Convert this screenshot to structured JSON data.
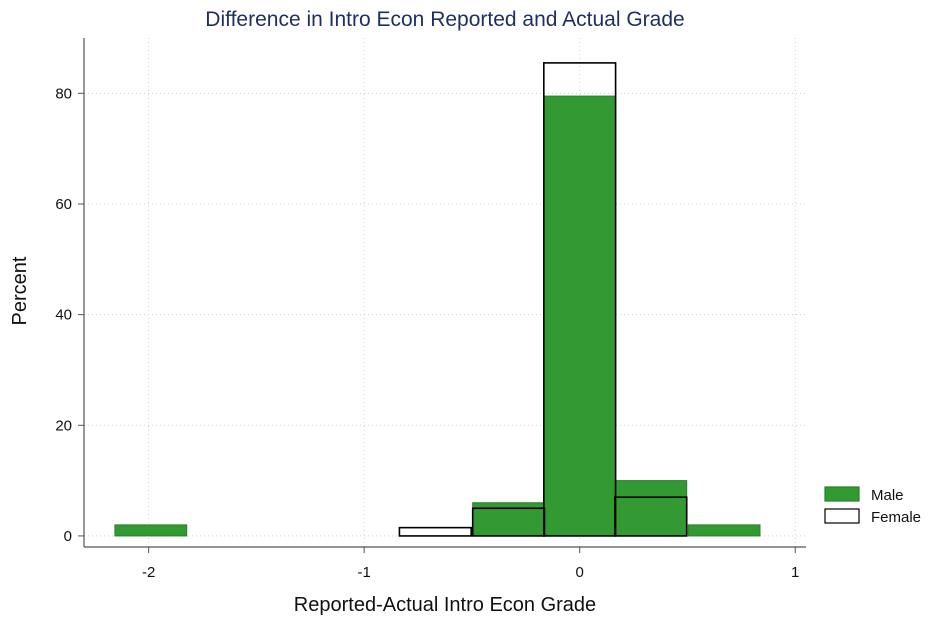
{
  "chart_data": {
    "type": "bar",
    "title": "Difference in Intro Econ Reported and Actual Grade",
    "xlabel": "Reported-Actual Intro Econ Grade",
    "ylabel": "Percent",
    "xlim": [
      -2.3,
      1.05
    ],
    "ylim": [
      -2,
      90
    ],
    "xticks": [
      -2,
      -1,
      0,
      1
    ],
    "xtick_labels": [
      "-2",
      "-1",
      "0",
      "1"
    ],
    "yticks": [
      0,
      20,
      40,
      60,
      80
    ],
    "ytick_labels": [
      "0",
      "20",
      "40",
      "60",
      "80"
    ],
    "grid": true,
    "bin_width": 0.333,
    "legend_position": "right",
    "series": [
      {
        "name": "Male",
        "color": "#339933",
        "fill": true,
        "bins": [
          {
            "x": -1.99,
            "value": 2
          },
          {
            "x": -0.33,
            "value": 6
          },
          {
            "x": 0.0,
            "value": 79.5
          },
          {
            "x": 0.33,
            "value": 10
          },
          {
            "x": 0.67,
            "value": 2
          }
        ]
      },
      {
        "name": "Female",
        "color": "#000000",
        "fill": false,
        "bins": [
          {
            "x": -0.67,
            "value": 1.5
          },
          {
            "x": -0.33,
            "value": 5
          },
          {
            "x": 0.0,
            "value": 85.5
          },
          {
            "x": 0.33,
            "value": 7
          }
        ]
      }
    ]
  }
}
